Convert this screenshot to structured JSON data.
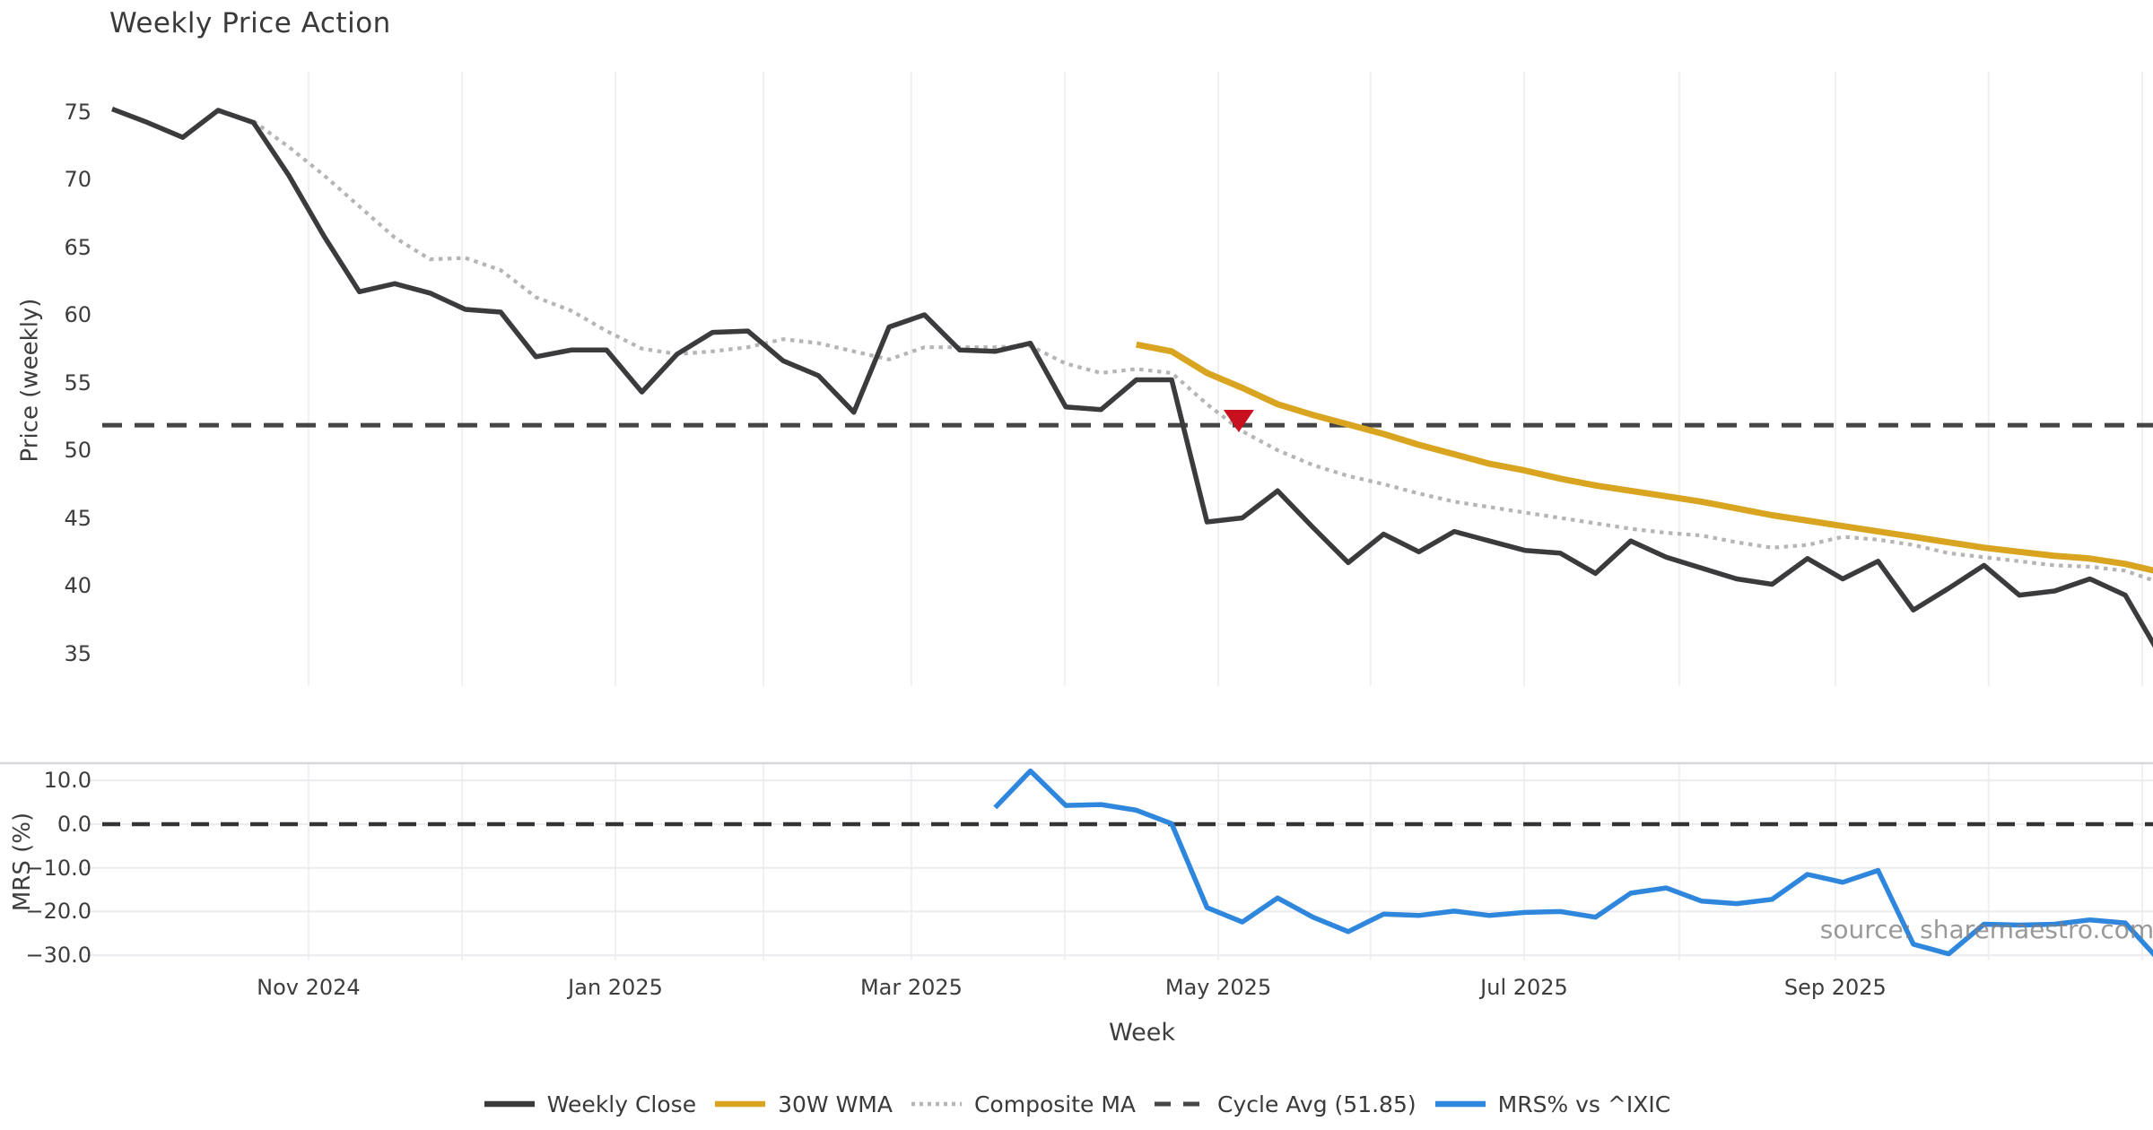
{
  "title": "Weekly Price Action",
  "watermark": "source: sharemaestro.com",
  "chart_data": {
    "type": "line",
    "xlabel": "Week",
    "x_unit": "weekly (Oct 2024 - Nov 2025)",
    "x_ticks": [
      {
        "label": "Nov 2024",
        "week": 6.56
      },
      {
        "label": "Jan 2025",
        "week": 15.25
      },
      {
        "label": "Mar 2025",
        "week": 23.63
      },
      {
        "label": "May 2025",
        "week": 32.32
      },
      {
        "label": "Jul 2025",
        "week": 40.98
      },
      {
        "label": "Sep 2025",
        "week": 49.79
      }
    ],
    "x_gridlines_weeks": [
      6.56,
      10.91,
      15.25,
      19.44,
      23.63,
      27.97,
      32.32,
      36.63,
      40.98,
      45.37,
      49.79,
      54.13,
      58.48
    ],
    "price_panel": {
      "ylabel": "Price (weekly)",
      "ylim": [
        32.6,
        77.9
      ],
      "y_ticks": [
        75,
        70,
        65,
        60,
        55,
        50,
        45,
        40,
        35
      ],
      "grid": "x-only",
      "cycle_avg": 51.85,
      "marker": {
        "name": "red-triangle-marker",
        "shape": "triangle-down",
        "week": 32.9,
        "value": 52.25,
        "color": "#c8101e"
      },
      "series": [
        {
          "name": "Weekly Close",
          "color": "#3b3b3d",
          "style": "solid",
          "start_week": 1,
          "values": [
            75.2,
            74.2,
            73.1,
            75.1,
            74.2,
            70.3,
            65.8,
            61.7,
            62.3,
            61.6,
            60.4,
            60.2,
            56.9,
            57.4,
            57.4,
            54.3,
            57.1,
            58.7,
            58.8,
            56.6,
            55.5,
            52.8,
            59.1,
            60.0,
            57.4,
            57.3,
            57.9,
            53.2,
            53.0,
            55.2,
            55.2,
            44.7,
            45.0,
            47.0,
            44.3,
            41.7,
            43.8,
            42.5,
            44.0,
            43.3,
            42.6,
            42.4,
            40.9,
            43.3,
            42.1,
            41.3,
            40.5,
            40.1,
            42.0,
            40.5,
            41.8,
            38.2,
            39.8,
            41.5,
            39.3,
            39.6,
            40.5,
            39.3,
            34.8
          ]
        },
        {
          "name": "30W WMA",
          "color": "#d9a420",
          "style": "solid",
          "start_week": 30,
          "values": [
            57.8,
            57.3,
            55.7,
            54.6,
            53.4,
            52.6,
            51.9,
            51.2,
            50.4,
            49.7,
            49.0,
            48.5,
            47.9,
            47.4,
            47.0,
            46.6,
            46.2,
            45.7,
            45.2,
            44.8,
            44.4,
            44.0,
            43.6,
            43.2,
            42.8,
            42.5,
            42.2,
            42.0,
            41.6,
            41.0
          ]
        },
        {
          "name": "Composite MA",
          "color": "#b5b5b5",
          "style": "dotted",
          "start_week": 5,
          "values": [
            74.3,
            72.4,
            70.3,
            68.0,
            65.7,
            64.1,
            64.2,
            63.3,
            61.3,
            60.3,
            58.8,
            57.5,
            57.1,
            57.3,
            57.6,
            58.2,
            57.9,
            57.3,
            56.7,
            57.6,
            57.6,
            57.6,
            57.7,
            56.4,
            55.7,
            56.0,
            55.7,
            53.4,
            51.4,
            50.0,
            48.9,
            48.1,
            47.5,
            46.8,
            46.2,
            45.8,
            45.4,
            45.0,
            44.6,
            44.2,
            43.9,
            43.7,
            43.2,
            42.8,
            43.0,
            43.6,
            43.4,
            43.0,
            42.4,
            42.1,
            41.8,
            41.5,
            41.4,
            41.1,
            40.2
          ]
        },
        {
          "name": "Cycle Avg (51.85)",
          "color": "#454545",
          "style": "dashed",
          "type": "hline",
          "value": 51.85
        }
      ]
    },
    "mrs_panel": {
      "ylabel": "MRS (%)",
      "ylim": [
        -31.2,
        14.0
      ],
      "y_ticks": [
        10.0,
        0.0,
        -10.0,
        -20.0,
        -30.0
      ],
      "grid": "both",
      "zero_line": 0.0,
      "series": [
        {
          "name": "MRS% vs ^IXIC",
          "color": "#2e86dd",
          "style": "solid",
          "start_week": 26,
          "values": [
            3.8,
            12.2,
            4.3,
            4.5,
            3.2,
            0.1,
            -19.1,
            -22.4,
            -16.9,
            -21.3,
            -24.6,
            -20.6,
            -20.9,
            -19.9,
            -20.9,
            -20.2,
            -20.0,
            -21.3,
            -15.8,
            -14.6,
            -17.6,
            -18.2,
            -17.2,
            -11.5,
            -13.3,
            -10.6,
            -27.5,
            -29.7,
            -22.9,
            -23.1,
            -22.9,
            -21.9,
            -22.6,
            -31.5
          ]
        }
      ]
    },
    "legend": [
      {
        "label": "Weekly Close",
        "color": "#3b3b3d",
        "style": "solid"
      },
      {
        "label": "30W WMA",
        "color": "#d9a420",
        "style": "solid"
      },
      {
        "label": "Composite MA",
        "color": "#b5b5b5",
        "style": "dotted"
      },
      {
        "label": "Cycle Avg (51.85)",
        "color": "#454545",
        "style": "dashed"
      },
      {
        "label": "MRS% vs ^IXIC",
        "color": "#2e86dd",
        "style": "solid"
      }
    ]
  }
}
